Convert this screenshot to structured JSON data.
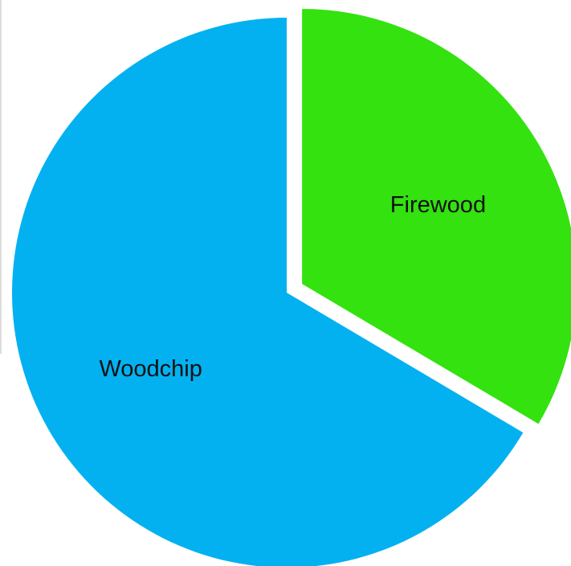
{
  "chart_data": {
    "type": "pie",
    "slices": [
      {
        "label": "Firewood",
        "value": 33.5,
        "color": "#33e20f",
        "exploded": true
      },
      {
        "label": "Woodchip",
        "value": 66.5,
        "color": "#03b1f0",
        "exploded": false
      }
    ],
    "start_angle": "12 o'clock",
    "direction": "clockwise",
    "labels_inside": true,
    "legend": "none",
    "title": ""
  }
}
